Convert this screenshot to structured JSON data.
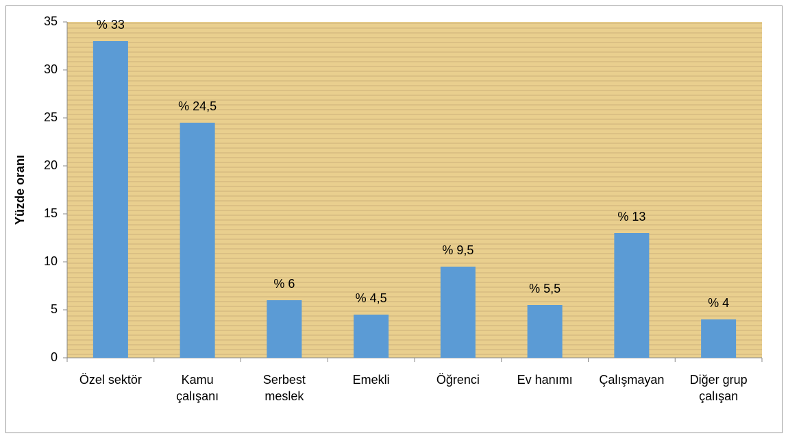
{
  "chart_data": {
    "type": "bar",
    "y_label": "Yüzde oranı",
    "categories": [
      "Özel sektör",
      "Kamu\nçalışanı",
      "Serbest\nmeslek",
      "Emekli",
      "Öğrenci",
      "Ev hanımı",
      "Çalışmayan",
      "Diğer grup\nçalışan"
    ],
    "values": [
      33,
      24.5,
      6,
      4.5,
      9.5,
      5.5,
      13,
      4
    ],
    "value_labels": [
      "% 33",
      "% 24,5",
      "% 6",
      "% 4,5",
      "% 9,5",
      "% 5,5",
      "% 13",
      "% 4"
    ],
    "color": "#5b9bd5",
    "ylim": [
      0,
      35
    ],
    "yticks": [
      0,
      5,
      10,
      15,
      20,
      25,
      30,
      35
    ]
  }
}
